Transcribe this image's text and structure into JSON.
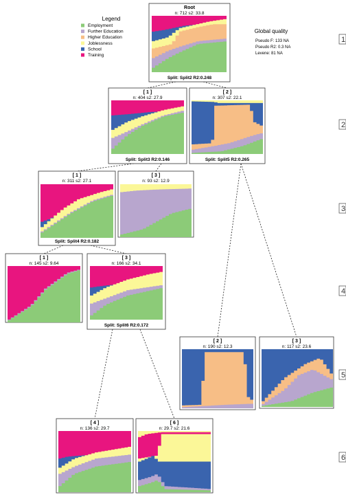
{
  "legend": {
    "title": "Legend",
    "items": [
      {
        "label": "Employment",
        "color": "#8CCB78"
      },
      {
        "label": "Further Education",
        "color": "#B8A6CE"
      },
      {
        "label": "Higher Education",
        "color": "#F7BE86"
      },
      {
        "label": "Joblessness",
        "color": "#FBF798"
      },
      {
        "label": "School",
        "color": "#3A64AE"
      },
      {
        "label": "Training",
        "color": "#E8157F"
      }
    ]
  },
  "global_quality": {
    "title": "Global quality",
    "lines": [
      "Pseudo F: 133 NA",
      "Pseudo R2: 0.3 NA",
      "Levene: 81 NA"
    ]
  },
  "levels": [
    "1",
    "2",
    "3",
    "4",
    "5",
    "6"
  ],
  "nodes": [
    {
      "id": "root",
      "title": "Root",
      "stats": "n: 712 s2: 33.8",
      "split": "Split: Split2 R2:0.248"
    },
    {
      "id": "n1",
      "title": "[ 1 ]",
      "stats": "n: 404 s2: 27.9",
      "split": "Split: Split3 R2:0.146"
    },
    {
      "id": "n2",
      "title": "[ 2 ]",
      "stats": "n: 307 s2: 22.1",
      "split": "Split: Split5 R2:0.265"
    },
    {
      "id": "n11",
      "title": "[ 1 ]",
      "stats": "n: 311 s2: 27.1",
      "split": "Split: Split4 R2:0.182"
    },
    {
      "id": "n13",
      "title": "[ 3 ]",
      "stats": "n: 93 s2: 12.9",
      "split": ""
    },
    {
      "id": "n111",
      "title": "[ 1 ]",
      "stats": "n: 145 s2: 9.64",
      "split": ""
    },
    {
      "id": "n113",
      "title": "[ 3 ]",
      "stats": "n: 166 s2: 34.1",
      "split": "Split: Split6 R2:0.172"
    },
    {
      "id": "n22",
      "title": "[ 2 ]",
      "stats": "n: 190 s2: 12.3",
      "split": ""
    },
    {
      "id": "n23",
      "title": "[ 3 ]",
      "stats": "n: 117 s2: 23.6",
      "split": ""
    },
    {
      "id": "n1134",
      "title": "[ 4 ]",
      "stats": "n: 136 s2: 29.7",
      "split": ""
    },
    {
      "id": "n1136",
      "title": "[ 6 ]",
      "stats": "n: 29.7 s2: 21.6",
      "split": ""
    }
  ]
}
